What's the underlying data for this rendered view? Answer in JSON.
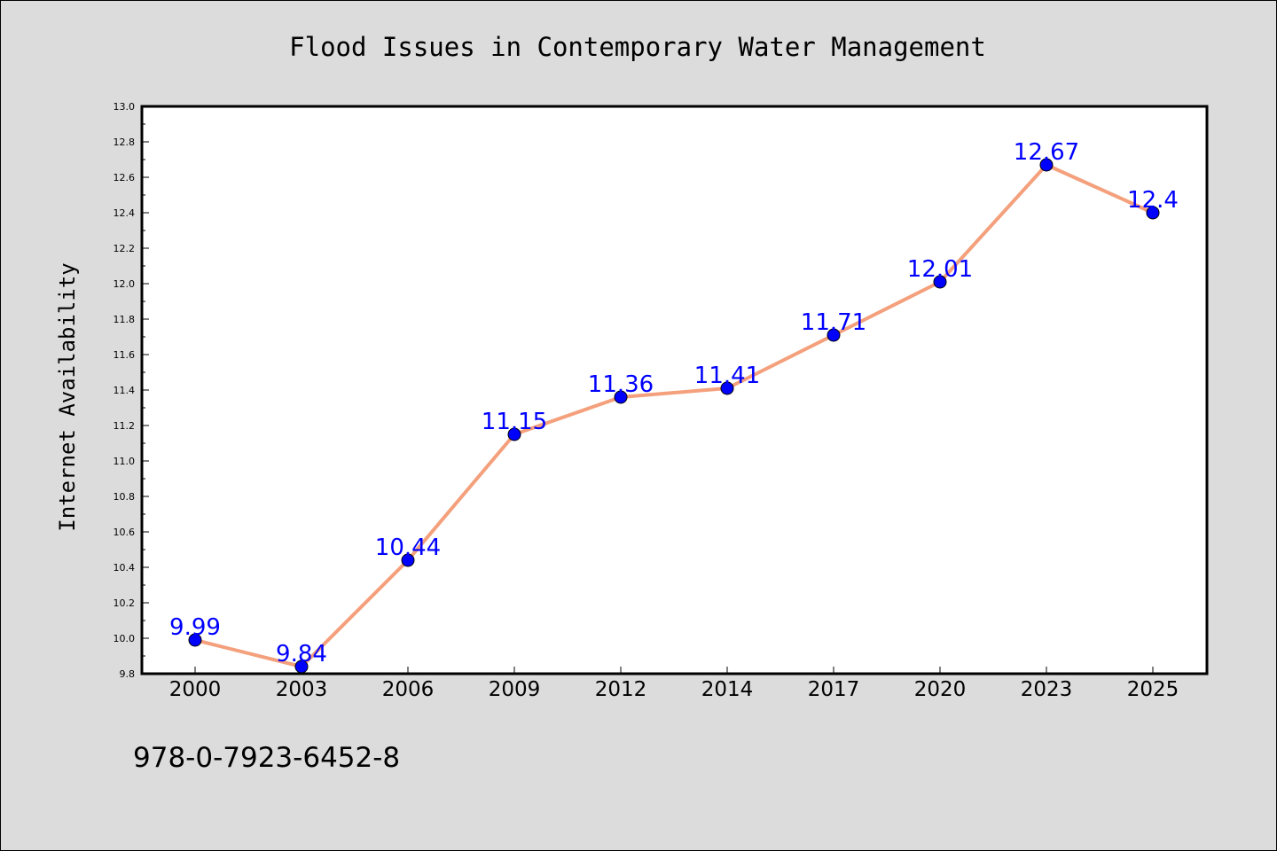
{
  "chart_data": {
    "type": "line",
    "title": "Flood Issues in Contemporary Water Management",
    "xlabel": "",
    "ylabel": "Internet Availability",
    "categories": [
      "2000",
      "2003",
      "2006",
      "2009",
      "2012",
      "2014",
      "2017",
      "2020",
      "2023",
      "2025"
    ],
    "values": [
      9.99,
      9.84,
      10.44,
      11.15,
      11.36,
      11.41,
      11.71,
      12.01,
      12.67,
      12.4
    ],
    "data_labels": [
      "9.99",
      "9.84",
      "10.44",
      "11.15",
      "11.36",
      "11.41",
      "11.71",
      "12.01",
      "12.67",
      "12.4"
    ],
    "ylim": [
      9.8,
      13.0
    ],
    "yticks": [
      "9.8",
      "10.0",
      "10.2",
      "10.4",
      "10.6",
      "10.8",
      "11.0",
      "11.2",
      "11.4",
      "11.6",
      "11.8",
      "12.0",
      "12.2",
      "12.4",
      "12.6",
      "12.8",
      "13.0"
    ],
    "grid": false,
    "legend": "none",
    "line_color": "#f4a07c",
    "marker_color": "#0000ff",
    "label_color": "#0000ff"
  },
  "footer": {
    "isbn": "978-0-7923-6452-8"
  }
}
